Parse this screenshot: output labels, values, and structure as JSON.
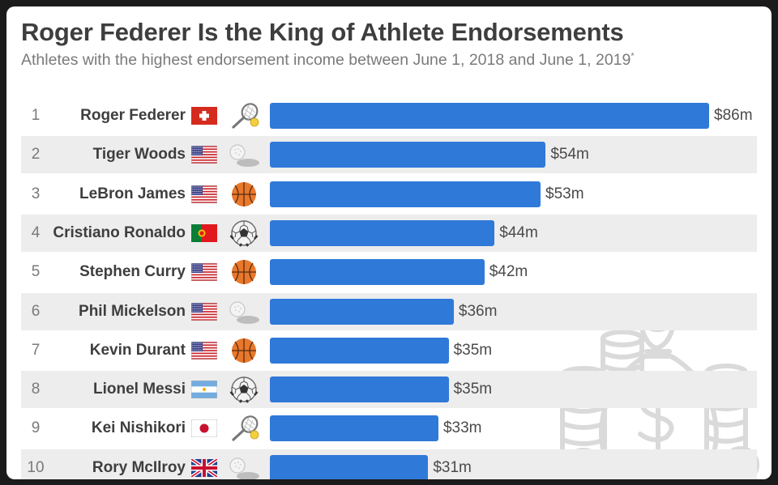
{
  "title": "Roger Federer Is the King of Athlete Endorsements",
  "subtitle": "Athletes with the highest endorsement income between June 1, 2018 and June 1, 2019",
  "subtitle_marker": "*",
  "chart_data": {
    "type": "bar",
    "orientation": "horizontal",
    "title": "Roger Federer Is the King of Athlete Endorsements",
    "subtitle": "Athletes with the highest endorsement income between June 1, 2018 and June 1, 2019*",
    "unit": "$m",
    "bar_color": "#2f79d9",
    "xlim": [
      0,
      86
    ],
    "grid": false,
    "legend": "none",
    "categories": [
      "Roger Federer",
      "Tiger Woods",
      "LeBron James",
      "Cristiano Ronaldo",
      "Stephen Curry",
      "Phil Mickelson",
      "Kevin Durant",
      "Lionel Messi",
      "Kei Nishikori",
      "Rory McIlroy"
    ],
    "values": [
      86,
      54,
      53,
      44,
      42,
      36,
      35,
      35,
      33,
      31
    ],
    "rows": [
      {
        "rank": "1",
        "name": "Roger Federer",
        "flag": "switzerland-flag",
        "sport": "tennis-icon",
        "value": 86,
        "label": "$86m"
      },
      {
        "rank": "2",
        "name": "Tiger Woods",
        "flag": "usa-flag",
        "sport": "golf-icon",
        "value": 54,
        "label": "$54m"
      },
      {
        "rank": "3",
        "name": "LeBron James",
        "flag": "usa-flag",
        "sport": "basketball-icon",
        "value": 53,
        "label": "$53m"
      },
      {
        "rank": "4",
        "name": "Cristiano Ronaldo",
        "flag": "portugal-flag",
        "sport": "soccer-ball-icon",
        "value": 44,
        "label": "$44m"
      },
      {
        "rank": "5",
        "name": "Stephen Curry",
        "flag": "usa-flag",
        "sport": "basketball-icon",
        "value": 42,
        "label": "$42m"
      },
      {
        "rank": "6",
        "name": "Phil Mickelson",
        "flag": "usa-flag",
        "sport": "golf-icon",
        "value": 36,
        "label": "$36m"
      },
      {
        "rank": "7",
        "name": "Kevin Durant",
        "flag": "usa-flag",
        "sport": "basketball-icon",
        "value": 35,
        "label": "$35m"
      },
      {
        "rank": "8",
        "name": "Lionel Messi",
        "flag": "argentina-flag",
        "sport": "soccer-ball-icon",
        "value": 35,
        "label": "$35m"
      },
      {
        "rank": "9",
        "name": "Kei Nishikori",
        "flag": "japan-flag",
        "sport": "tennis-icon",
        "value": 33,
        "label": "$33m"
      },
      {
        "rank": "10",
        "name": "Rory McIlroy",
        "flag": "uk-flag",
        "sport": "golf-icon",
        "value": 31,
        "label": "$31m"
      }
    ]
  }
}
